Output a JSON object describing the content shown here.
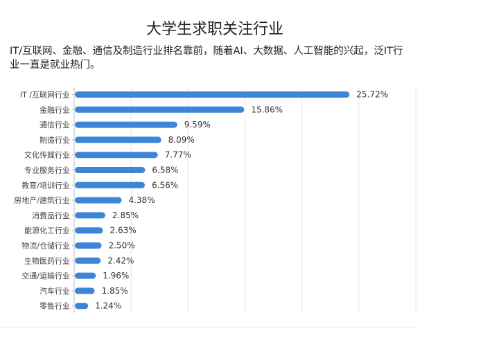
{
  "chart_data": {
    "type": "bar",
    "orientation": "horizontal",
    "title": "大学生求职关注行业",
    "subtitle": "IT/互联网、金融、通信及制造行业排名靠前，随着AI、大数据、人工智能的兴起，泛IT行业一直是就业热门。",
    "categories": [
      "IT /互联网行业",
      "金融行业",
      "通信行业",
      "制造行业",
      "文化传媒行业",
      "专业服务行业",
      "教育/培训行业",
      "房地产/建筑行业",
      "消费品行业",
      "能源化工行业",
      "物流/仓储行业",
      "生物医药行业",
      "交通/运输行业",
      "汽车行业",
      "零售行业"
    ],
    "values": [
      25.72,
      15.86,
      9.59,
      8.09,
      7.77,
      6.58,
      6.56,
      4.38,
      2.85,
      2.63,
      2.5,
      2.42,
      1.96,
      1.85,
      1.24
    ],
    "value_labels": [
      "25.72%",
      "15.86%",
      "9.59%",
      "8.09%",
      "7.77%",
      "6.58%",
      "6.56%",
      "4.38%",
      "2.85%",
      "2.63%",
      "2.50%",
      "2.42%",
      "1.96%",
      "1.85%",
      "1.24%"
    ],
    "xlim": [
      0,
      32
    ],
    "grid": "vertical",
    "bar_color": "#3d85d8",
    "grid_color": "#e6e6e6"
  }
}
